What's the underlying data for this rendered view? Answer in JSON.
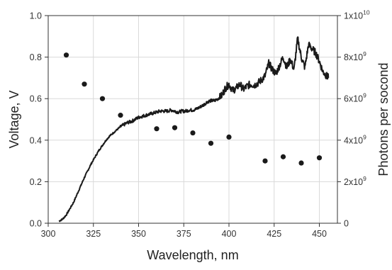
{
  "chart_data": {
    "type": "line",
    "xlabel": "Wavelength, nm",
    "ylabel_left": "Voltage, V",
    "ylabel_right": "Photons per socond",
    "xlim": [
      300,
      460
    ],
    "ylim_left": [
      0.0,
      1.0
    ],
    "ylim_right": [
      0,
      10000000000
    ],
    "x_ticks": [
      "300",
      "325",
      "350",
      "375",
      "400",
      "425",
      "450"
    ],
    "y_left_ticks": [
      "0.0",
      "0.2",
      "0.4",
      "0.6",
      "0.8",
      "1.0"
    ],
    "y_right_ticks": [
      {
        "base": "0",
        "exp": ""
      },
      {
        "base": "2x10",
        "exp": "9"
      },
      {
        "base": "4x10",
        "exp": "9"
      },
      {
        "base": "6x10",
        "exp": "9"
      },
      {
        "base": "8x10",
        "exp": "9"
      },
      {
        "base": "1x10",
        "exp": "10"
      }
    ],
    "grid": true,
    "series": [
      {
        "style": "noisy-line",
        "axis": "left",
        "color": "#1a1a1a",
        "points": [
          [
            306,
            0.01
          ],
          [
            308,
            0.02
          ],
          [
            310,
            0.04
          ],
          [
            312,
            0.07
          ],
          [
            314,
            0.1
          ],
          [
            316,
            0.14
          ],
          [
            318,
            0.18
          ],
          [
            320,
            0.22
          ],
          [
            322,
            0.255
          ],
          [
            324,
            0.29
          ],
          [
            326,
            0.32
          ],
          [
            328,
            0.35
          ],
          [
            330,
            0.375
          ],
          [
            332,
            0.4
          ],
          [
            334,
            0.42
          ],
          [
            336,
            0.435
          ],
          [
            338,
            0.45
          ],
          [
            340,
            0.465
          ],
          [
            342,
            0.475
          ],
          [
            344,
            0.485
          ],
          [
            346,
            0.49
          ],
          [
            348,
            0.5
          ],
          [
            350,
            0.51
          ],
          [
            352,
            0.515
          ],
          [
            354,
            0.52
          ],
          [
            356,
            0.525
          ],
          [
            358,
            0.53
          ],
          [
            360,
            0.535
          ],
          [
            362,
            0.54
          ],
          [
            364,
            0.54
          ],
          [
            366,
            0.54
          ],
          [
            368,
            0.545
          ],
          [
            370,
            0.54
          ],
          [
            372,
            0.535
          ],
          [
            374,
            0.54
          ],
          [
            376,
            0.54
          ],
          [
            378,
            0.545
          ],
          [
            380,
            0.545
          ],
          [
            382,
            0.55
          ],
          [
            384,
            0.56
          ],
          [
            386,
            0.57
          ],
          [
            388,
            0.585
          ],
          [
            390,
            0.59
          ],
          [
            392,
            0.59
          ],
          [
            394,
            0.6
          ],
          [
            396,
            0.615
          ],
          [
            398,
            0.65
          ],
          [
            400,
            0.67
          ],
          [
            402,
            0.64
          ],
          [
            404,
            0.65
          ],
          [
            406,
            0.67
          ],
          [
            408,
            0.645
          ],
          [
            410,
            0.66
          ],
          [
            412,
            0.67
          ],
          [
            414,
            0.665
          ],
          [
            416,
            0.675
          ],
          [
            418,
            0.69
          ],
          [
            420,
            0.71
          ],
          [
            422,
            0.77
          ],
          [
            424,
            0.74
          ],
          [
            426,
            0.72
          ],
          [
            428,
            0.76
          ],
          [
            430,
            0.8
          ],
          [
            432,
            0.75
          ],
          [
            434,
            0.79
          ],
          [
            436,
            0.74
          ],
          [
            438,
            0.89
          ],
          [
            440,
            0.8
          ],
          [
            442,
            0.75
          ],
          [
            444,
            0.86
          ],
          [
            446,
            0.84
          ],
          [
            448,
            0.82
          ],
          [
            450,
            0.78
          ],
          [
            452,
            0.73
          ],
          [
            454,
            0.71
          ],
          [
            455,
            0.7
          ]
        ]
      },
      {
        "style": "scatter",
        "axis": "right",
        "color": "#1a1a1a",
        "points": [
          [
            310,
            8100000000
          ],
          [
            320,
            6700000000
          ],
          [
            330,
            6000000000
          ],
          [
            340,
            5200000000
          ],
          [
            360,
            4550000000
          ],
          [
            370,
            4600000000
          ],
          [
            380,
            4350000000
          ],
          [
            390,
            3850000000
          ],
          [
            400,
            4150000000
          ],
          [
            420,
            3000000000
          ],
          [
            430,
            3200000000
          ],
          [
            440,
            2900000000
          ],
          [
            450,
            3150000000
          ]
        ]
      }
    ]
  }
}
